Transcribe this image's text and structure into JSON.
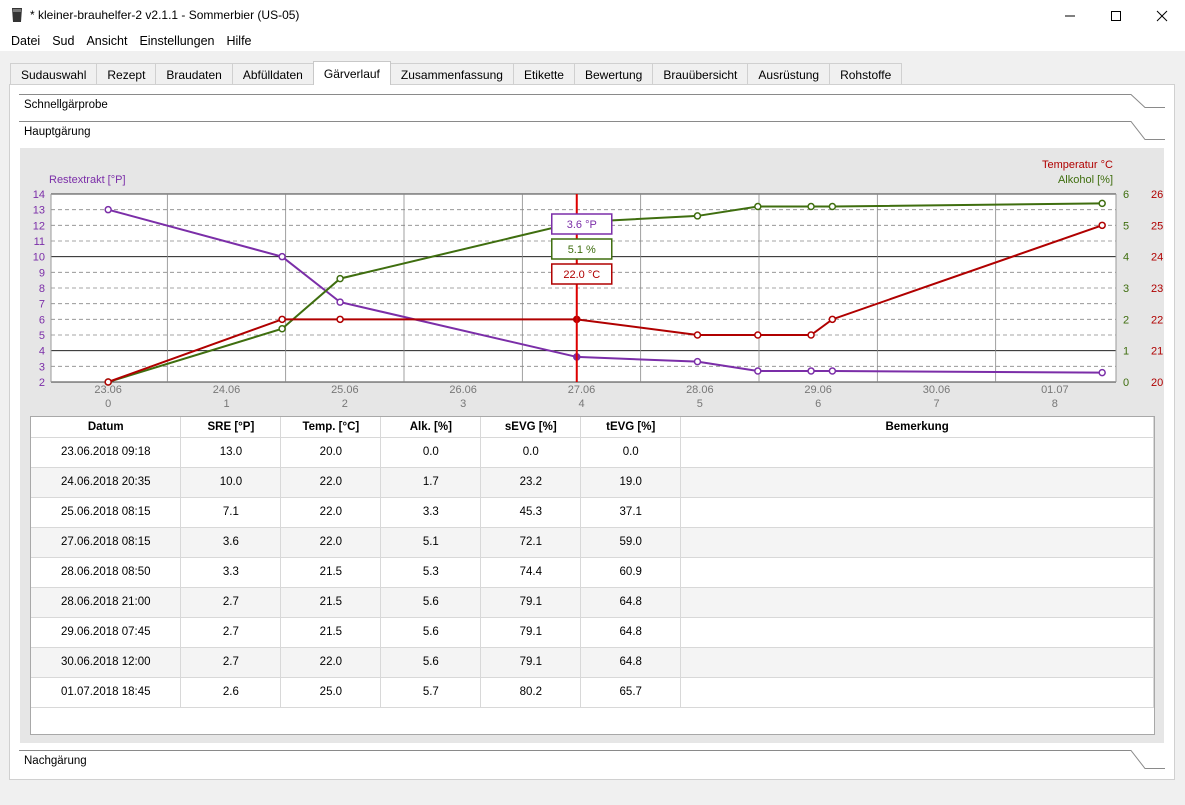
{
  "window": {
    "title": "* kleiner-brauhelfer-2 v2.1.1 - Sommerbier (US-05)"
  },
  "menu": [
    "Datei",
    "Sud",
    "Ansicht",
    "Einstellungen",
    "Hilfe"
  ],
  "tabs": [
    "Sudauswahl",
    "Rezept",
    "Braudaten",
    "Abfülldaten",
    "Gärverlauf",
    "Zusammenfassung",
    "Etikette",
    "Bewertung",
    "Brauübersicht",
    "Ausrüstung",
    "Rohstoffe"
  ],
  "active_tab": "Gärverlauf",
  "sections": {
    "schnell": "Schnellgärprobe",
    "haupt": "Hauptgärung",
    "nach": "Nachgärung"
  },
  "colors": {
    "extract": "#7b2ea8",
    "alcohol": "#3f6e0f",
    "temperature": "#b00000",
    "cursor": "#dd0000"
  },
  "chart_data": {
    "type": "line",
    "axis_labels": {
      "left": "Restextrakt [°P]",
      "right_top": "Temperatur °C",
      "right_bottom": "Alkohol [%]"
    },
    "left_axis": {
      "range": [
        2,
        14
      ],
      "ticks": [
        2,
        3,
        4,
        5,
        6,
        7,
        8,
        9,
        10,
        11,
        12,
        13,
        14
      ]
    },
    "alcohol_axis": {
      "range": [
        0,
        6
      ],
      "ticks": [
        0,
        1,
        2,
        3,
        4,
        5,
        6
      ]
    },
    "temperature_axis": {
      "range": [
        20,
        26
      ],
      "ticks": [
        20,
        21,
        22,
        23,
        24,
        25,
        26
      ]
    },
    "x_range": [
      0,
      8.3
    ],
    "x_ticks": [
      {
        "date": "23.06",
        "day": "0",
        "x": 0
      },
      {
        "date": "24.06",
        "day": "1",
        "x": 1
      },
      {
        "date": "25.06",
        "day": "2",
        "x": 2
      },
      {
        "date": "26.06",
        "day": "3",
        "x": 3
      },
      {
        "date": "27.06",
        "day": "4",
        "x": 4
      },
      {
        "date": "28.06",
        "day": "5",
        "x": 5
      },
      {
        "date": "29.06",
        "day": "6",
        "x": 6
      },
      {
        "date": "30.06",
        "day": "7",
        "x": 7
      },
      {
        "date": "01.07",
        "day": "8",
        "x": 8
      }
    ],
    "x_days": [
      0,
      1.47,
      1.96,
      3.96,
      4.98,
      5.49,
      5.94,
      6.12,
      8.4
    ],
    "series": [
      {
        "key": "extract",
        "name": "Restextrakt [°P]",
        "axis": "left",
        "values": [
          13.0,
          10.0,
          7.1,
          3.6,
          3.3,
          2.7,
          2.7,
          2.7,
          2.6
        ]
      },
      {
        "key": "alcohol",
        "name": "Alkohol [%]",
        "axis": "alcohol",
        "values": [
          0.0,
          1.7,
          3.3,
          5.1,
          5.3,
          5.6,
          5.6,
          5.6,
          5.7
        ]
      },
      {
        "key": "temperature",
        "name": "Temperatur °C",
        "axis": "temperature",
        "values": [
          20.0,
          22.0,
          22.0,
          22.0,
          21.5,
          21.5,
          21.5,
          22.0,
          25.0
        ]
      }
    ],
    "cursor_index": 3,
    "cursor_labels": {
      "extract": "3.6 °P",
      "alcohol": "5.1 %",
      "temperature": "22.0 °C"
    }
  },
  "table": {
    "headers": [
      "Datum",
      "SRE [°P]",
      "Temp. [°C]",
      "Alk. [%]",
      "sEVG [%]",
      "tEVG [%]",
      "Bemerkung"
    ],
    "rows": [
      [
        "23.06.2018 09:18",
        "13.0",
        "20.0",
        "0.0",
        "0.0",
        "0.0",
        ""
      ],
      [
        "24.06.2018 20:35",
        "10.0",
        "22.0",
        "1.7",
        "23.2",
        "19.0",
        ""
      ],
      [
        "25.06.2018 08:15",
        "7.1",
        "22.0",
        "3.3",
        "45.3",
        "37.1",
        ""
      ],
      [
        "27.06.2018 08:15",
        "3.6",
        "22.0",
        "5.1",
        "72.1",
        "59.0",
        ""
      ],
      [
        "28.06.2018 08:50",
        "3.3",
        "21.5",
        "5.3",
        "74.4",
        "60.9",
        ""
      ],
      [
        "28.06.2018 21:00",
        "2.7",
        "21.5",
        "5.6",
        "79.1",
        "64.8",
        ""
      ],
      [
        "29.06.2018 07:45",
        "2.7",
        "21.5",
        "5.6",
        "79.1",
        "64.8",
        ""
      ],
      [
        "30.06.2018 12:00",
        "2.7",
        "22.0",
        "5.6",
        "79.1",
        "64.8",
        ""
      ],
      [
        "01.07.2018 18:45",
        "2.6",
        "25.0",
        "5.7",
        "80.2",
        "65.7",
        ""
      ]
    ]
  }
}
